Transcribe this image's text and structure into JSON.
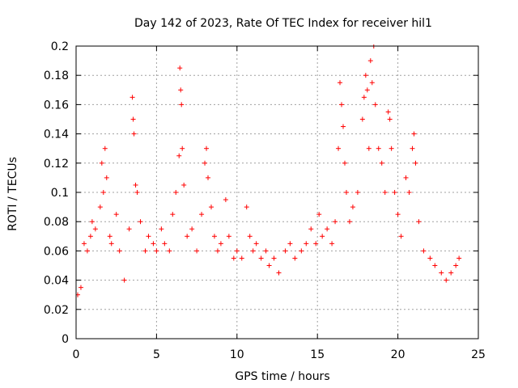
{
  "chart_data": {
    "type": "scatter",
    "title": "Day 142 of 2023, Rate Of TEC Index for receiver hil1",
    "xlabel": "GPS time / hours",
    "ylabel": "ROTI / TECUs",
    "xlim": [
      0,
      25
    ],
    "ylim": [
      0,
      0.2
    ],
    "x_ticks": [
      0,
      5,
      10,
      15,
      20,
      25
    ],
    "y_ticks": [
      0,
      0.02,
      0.04,
      0.06,
      0.08,
      0.1,
      0.12,
      0.14,
      0.16,
      0.18,
      0.2
    ],
    "grid": true,
    "legend": "none",
    "marker": "plus",
    "marker_color": "#ff0000",
    "series": [
      {
        "points": [
          [
            0.1,
            0.03
          ],
          [
            0.3,
            0.035
          ],
          [
            0.5,
            0.065
          ],
          [
            0.7,
            0.06
          ],
          [
            0.9,
            0.07
          ],
          [
            1.0,
            0.08
          ],
          [
            1.2,
            0.075
          ],
          [
            1.5,
            0.09
          ],
          [
            1.6,
            0.12
          ],
          [
            1.7,
            0.1
          ],
          [
            1.8,
            0.13
          ],
          [
            1.9,
            0.11
          ],
          [
            2.1,
            0.07
          ],
          [
            2.2,
            0.065
          ],
          [
            2.5,
            0.085
          ],
          [
            2.7,
            0.06
          ],
          [
            3.0,
            0.04
          ],
          [
            3.3,
            0.075
          ],
          [
            3.5,
            0.165
          ],
          [
            3.55,
            0.15
          ],
          [
            3.6,
            0.14
          ],
          [
            3.7,
            0.105
          ],
          [
            3.8,
            0.1
          ],
          [
            4.0,
            0.08
          ],
          [
            4.3,
            0.06
          ],
          [
            4.5,
            0.07
          ],
          [
            4.8,
            0.065
          ],
          [
            5.0,
            0.06
          ],
          [
            5.3,
            0.075
          ],
          [
            5.5,
            0.065
          ],
          [
            5.8,
            0.06
          ],
          [
            6.0,
            0.085
          ],
          [
            6.2,
            0.1
          ],
          [
            6.4,
            0.125
          ],
          [
            6.45,
            0.185
          ],
          [
            6.5,
            0.17
          ],
          [
            6.55,
            0.16
          ],
          [
            6.6,
            0.13
          ],
          [
            6.7,
            0.105
          ],
          [
            6.9,
            0.07
          ],
          [
            7.2,
            0.075
          ],
          [
            7.5,
            0.06
          ],
          [
            7.8,
            0.085
          ],
          [
            8.0,
            0.12
          ],
          [
            8.1,
            0.13
          ],
          [
            8.2,
            0.11
          ],
          [
            8.4,
            0.09
          ],
          [
            8.6,
            0.07
          ],
          [
            8.8,
            0.06
          ],
          [
            9.0,
            0.065
          ],
          [
            9.3,
            0.095
          ],
          [
            9.5,
            0.07
          ],
          [
            9.8,
            0.055
          ],
          [
            10.0,
            0.06
          ],
          [
            10.3,
            0.055
          ],
          [
            10.6,
            0.09
          ],
          [
            10.8,
            0.07
          ],
          [
            11.0,
            0.06
          ],
          [
            11.2,
            0.065
          ],
          [
            11.5,
            0.055
          ],
          [
            11.8,
            0.06
          ],
          [
            12.0,
            0.05
          ],
          [
            12.3,
            0.055
          ],
          [
            12.6,
            0.045
          ],
          [
            13.0,
            0.06
          ],
          [
            13.3,
            0.065
          ],
          [
            13.6,
            0.055
          ],
          [
            14.0,
            0.06
          ],
          [
            14.3,
            0.065
          ],
          [
            14.6,
            0.075
          ],
          [
            14.9,
            0.065
          ],
          [
            15.1,
            0.085
          ],
          [
            15.3,
            0.07
          ],
          [
            15.6,
            0.075
          ],
          [
            15.9,
            0.065
          ],
          [
            16.1,
            0.08
          ],
          [
            16.3,
            0.13
          ],
          [
            16.4,
            0.175
          ],
          [
            16.5,
            0.16
          ],
          [
            16.6,
            0.145
          ],
          [
            16.7,
            0.12
          ],
          [
            16.8,
            0.1
          ],
          [
            17.0,
            0.08
          ],
          [
            17.2,
            0.09
          ],
          [
            17.5,
            0.1
          ],
          [
            17.8,
            0.15
          ],
          [
            17.9,
            0.165
          ],
          [
            18.0,
            0.18
          ],
          [
            18.1,
            0.17
          ],
          [
            18.2,
            0.13
          ],
          [
            18.3,
            0.19
          ],
          [
            18.4,
            0.175
          ],
          [
            18.5,
            0.2
          ],
          [
            18.6,
            0.16
          ],
          [
            18.8,
            0.13
          ],
          [
            19.0,
            0.12
          ],
          [
            19.2,
            0.1
          ],
          [
            19.4,
            0.155
          ],
          [
            19.5,
            0.15
          ],
          [
            19.6,
            0.13
          ],
          [
            19.8,
            0.1
          ],
          [
            20.0,
            0.085
          ],
          [
            20.2,
            0.07
          ],
          [
            20.5,
            0.11
          ],
          [
            20.7,
            0.1
          ],
          [
            20.9,
            0.13
          ],
          [
            21.0,
            0.14
          ],
          [
            21.1,
            0.12
          ],
          [
            21.3,
            0.08
          ],
          [
            21.6,
            0.06
          ],
          [
            22.0,
            0.055
          ],
          [
            22.3,
            0.05
          ],
          [
            22.7,
            0.045
          ],
          [
            23.0,
            0.04
          ],
          [
            23.3,
            0.045
          ],
          [
            23.6,
            0.05
          ],
          [
            23.8,
            0.055
          ]
        ]
      }
    ]
  }
}
